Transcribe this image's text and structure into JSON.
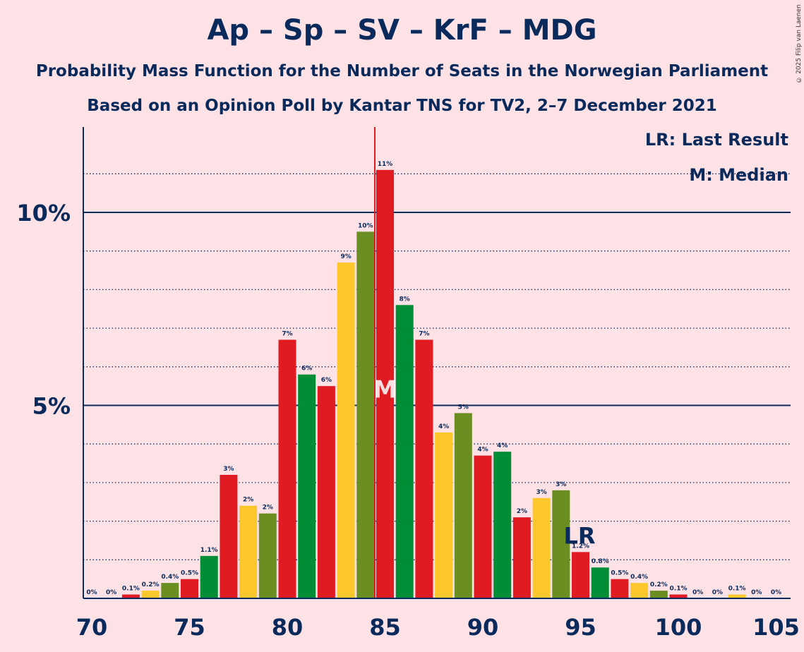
{
  "title": "Ap – Sp – SV – KrF – MDG",
  "subtitle": "Probability Mass Function for the Number of Seats in the Norwegian Parliament",
  "subtitle2": "Based on an Opinion Poll by Kantar TNS for TV2, 2–7 December 2021",
  "copyright": "© 2025 Filip van Laenen",
  "legend": {
    "last_result": "LR: Last Result",
    "median": "M: Median"
  },
  "markers": {
    "median_label": "M",
    "median_seat": 85,
    "last_result_label": "LR",
    "last_result_seat": 95
  },
  "colors": {
    "background": "#FFE2E6",
    "text": "#0A2A5C",
    "red": "#E01B22",
    "green": "#008D35",
    "yellow": "#FFC72C",
    "olive": "#6B8E23",
    "median_line": "#E01B22"
  },
  "chart_data": {
    "type": "bar",
    "title": "Ap – Sp – SV – KrF – MDG",
    "xlabel": "",
    "ylabel": "",
    "x": [
      70,
      71,
      72,
      73,
      74,
      75,
      76,
      77,
      78,
      79,
      80,
      81,
      82,
      83,
      84,
      85,
      86,
      87,
      88,
      89,
      90,
      91,
      92,
      93,
      94,
      95,
      96,
      97,
      98,
      99,
      100,
      101,
      102,
      103,
      104,
      105
    ],
    "values": [
      0,
      0,
      0.1,
      0.2,
      0.4,
      0.5,
      1.1,
      3.2,
      2.4,
      2.2,
      6.7,
      5.8,
      5.5,
      8.7,
      9.5,
      11.1,
      7.6,
      6.7,
      4.3,
      4.8,
      3.7,
      3.8,
      2.1,
      2.6,
      2.8,
      1.2,
      0.8,
      0.5,
      0.4,
      0.2,
      0.1,
      0,
      0,
      0.1,
      0,
      0
    ],
    "labels": [
      "0%",
      "0%",
      "0.1%",
      "0.2%",
      "0.4%",
      "0.5%",
      "1.1%",
      "3%",
      "2%",
      "2%",
      "7%",
      "6%",
      "6%",
      "9%",
      "10%",
      "11%",
      "8%",
      "7%",
      "4%",
      "5%",
      "4%",
      "4%",
      "2%",
      "3%",
      "3%",
      "1.2%",
      "0.8%",
      "0.5%",
      "0.4%",
      "0.2%",
      "0.1%",
      "0%",
      "0%",
      "0.1%",
      "0%",
      "0%"
    ],
    "colors": [
      "red",
      "green",
      "red",
      "yellow",
      "olive",
      "red",
      "green",
      "red",
      "yellow",
      "olive",
      "red",
      "green",
      "red",
      "yellow",
      "olive",
      "red",
      "green",
      "red",
      "yellow",
      "olive",
      "red",
      "green",
      "red",
      "yellow",
      "olive",
      "red",
      "green",
      "red",
      "yellow",
      "olive",
      "red",
      "green",
      "red",
      "yellow",
      "olive",
      "red"
    ],
    "xticks": [
      70,
      75,
      80,
      85,
      90,
      95,
      100,
      105
    ],
    "xtick_labels": [
      "70",
      "75",
      "80",
      "85",
      "90",
      "95",
      "100",
      "105"
    ],
    "yticks": [
      5,
      10
    ],
    "ytick_labels": [
      "5%",
      "10%"
    ],
    "ylim": [
      0,
      12.2
    ],
    "xlim": [
      70,
      105
    ],
    "grid": "dotted lines every 1%"
  }
}
